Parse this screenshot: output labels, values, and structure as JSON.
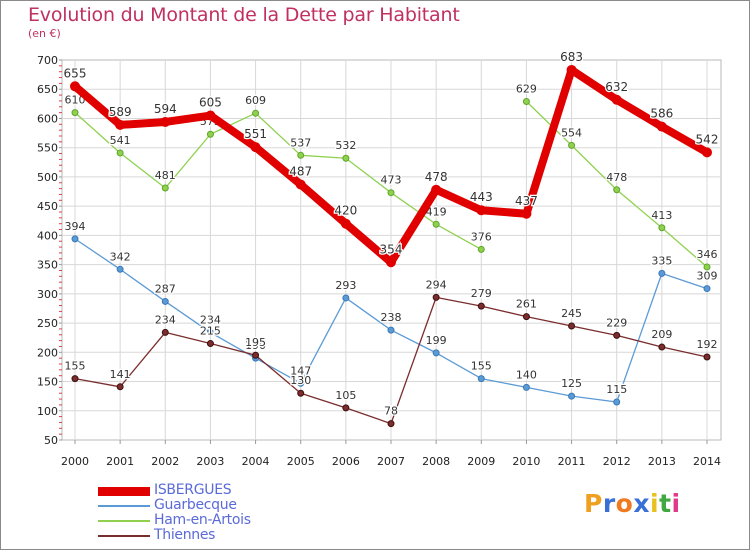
{
  "title": "Evolution du Montant de la Dette par Habitant",
  "unit": "(en €)",
  "brand": {
    "letters": [
      "P",
      "r",
      "o",
      "x",
      "i",
      "t",
      "i"
    ],
    "colors": [
      "#f0a020",
      "#3a6fd8",
      "#f07a20",
      "#3a6fd8",
      "#e8c020",
      "#40a840",
      "#e03a8a"
    ]
  },
  "chart_data": {
    "type": "line",
    "title": "Evolution du Montant de la Dette par Habitant",
    "ylabel": "(en €)",
    "x": [
      "2000",
      "2001",
      "2002",
      "2003",
      "2004",
      "2005",
      "2006",
      "2007",
      "2008",
      "2009",
      "2010",
      "2011",
      "2012",
      "2013",
      "2014"
    ],
    "ylim": [
      50,
      700
    ],
    "yticks": [
      50,
      100,
      150,
      200,
      250,
      300,
      350,
      400,
      450,
      500,
      550,
      600,
      650,
      700
    ],
    "grid": true,
    "legend_position": "bottom-left",
    "series": [
      {
        "name": "Guarbecque",
        "color": "#5b9bd5",
        "values": [
          394,
          342,
          287,
          234,
          190,
          147,
          293,
          238,
          199,
          155,
          140,
          125,
          115,
          335,
          309
        ],
        "labels": [
          "394",
          "342",
          "287",
          "234",
          "190",
          "147",
          "293",
          "238",
          "199",
          "155",
          "140",
          "125",
          "115",
          "335",
          "309"
        ]
      },
      {
        "name": "Ham-en-Artois",
        "color": "#8fd14f",
        "values": [
          610,
          541,
          481,
          573,
          609,
          537,
          532,
          473,
          419,
          376,
          629,
          554,
          478,
          413,
          346
        ],
        "labels": [
          "610",
          "541",
          "481",
          "573",
          "609",
          "537",
          "532",
          "473",
          "419",
          "376",
          "629",
          "554",
          "478",
          "413",
          "346"
        ],
        "segment_gaps": [
          [
            9,
            10
          ]
        ]
      },
      {
        "name": "Thiennes",
        "color": "#7b2d2d",
        "values": [
          155,
          141,
          234,
          215,
          195,
          130,
          105,
          78,
          294,
          279,
          261,
          245,
          229,
          209,
          192
        ],
        "labels": [
          "155",
          "141",
          "234",
          "215",
          "195",
          "130",
          "105",
          "78",
          "294",
          "279",
          "261",
          "245",
          "229",
          "209",
          "192"
        ]
      },
      {
        "name": "ISBERGUES",
        "color": "#e00000",
        "values": [
          655,
          589,
          594,
          605,
          551,
          487,
          420,
          354,
          478,
          443,
          437,
          683,
          632,
          586,
          542
        ],
        "labels": [
          "655",
          "589",
          "594",
          "605",
          "551",
          "487",
          "420",
          "354",
          "478",
          "443",
          "437",
          "683",
          "632",
          "586",
          "542"
        ]
      }
    ]
  }
}
